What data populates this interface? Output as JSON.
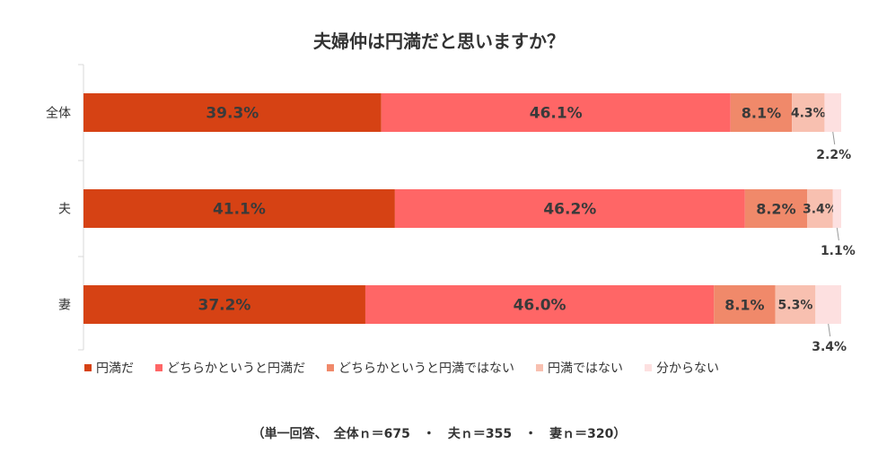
{
  "chart_data": {
    "type": "bar",
    "orientation": "horizontal",
    "stacked": true,
    "title": "夫婦仲は円満だと思いますか？",
    "categories": [
      "全体",
      "夫",
      "妻"
    ],
    "series": [
      {
        "name": "円満だ",
        "color": "#d64214",
        "values": [
          39.3,
          41.1,
          37.2
        ],
        "labels": [
          "39.3%",
          "41.1%",
          "37.2%"
        ]
      },
      {
        "name": "どちらかというと円満だ",
        "color": "#ff6666",
        "values": [
          46.1,
          46.2,
          46.0
        ],
        "labels": [
          "46.1%",
          "46.2%",
          "46.0%"
        ]
      },
      {
        "name": "どちらかというと円満ではない",
        "color": "#f0896a",
        "values": [
          8.1,
          8.2,
          8.1
        ],
        "labels": [
          "8.1%",
          "8.2%",
          "8.1%"
        ]
      },
      {
        "name": "円満ではない",
        "color": "#f8c0b0",
        "values": [
          4.3,
          3.4,
          5.3
        ],
        "labels": [
          "4.3%",
          "3.4%",
          "5.3%"
        ]
      },
      {
        "name": "分からない",
        "color": "#fde0e0",
        "values": [
          2.2,
          1.1,
          3.4
        ],
        "labels": [
          "2.2%",
          "1.1%",
          "3.4%"
        ]
      }
    ],
    "xlim": [
      0,
      100
    ],
    "legend_position": "bottom-left",
    "footnote": "（単一回答、　全体ｎ＝675　・　夫ｎ＝355　・　妻ｎ＝320）"
  }
}
